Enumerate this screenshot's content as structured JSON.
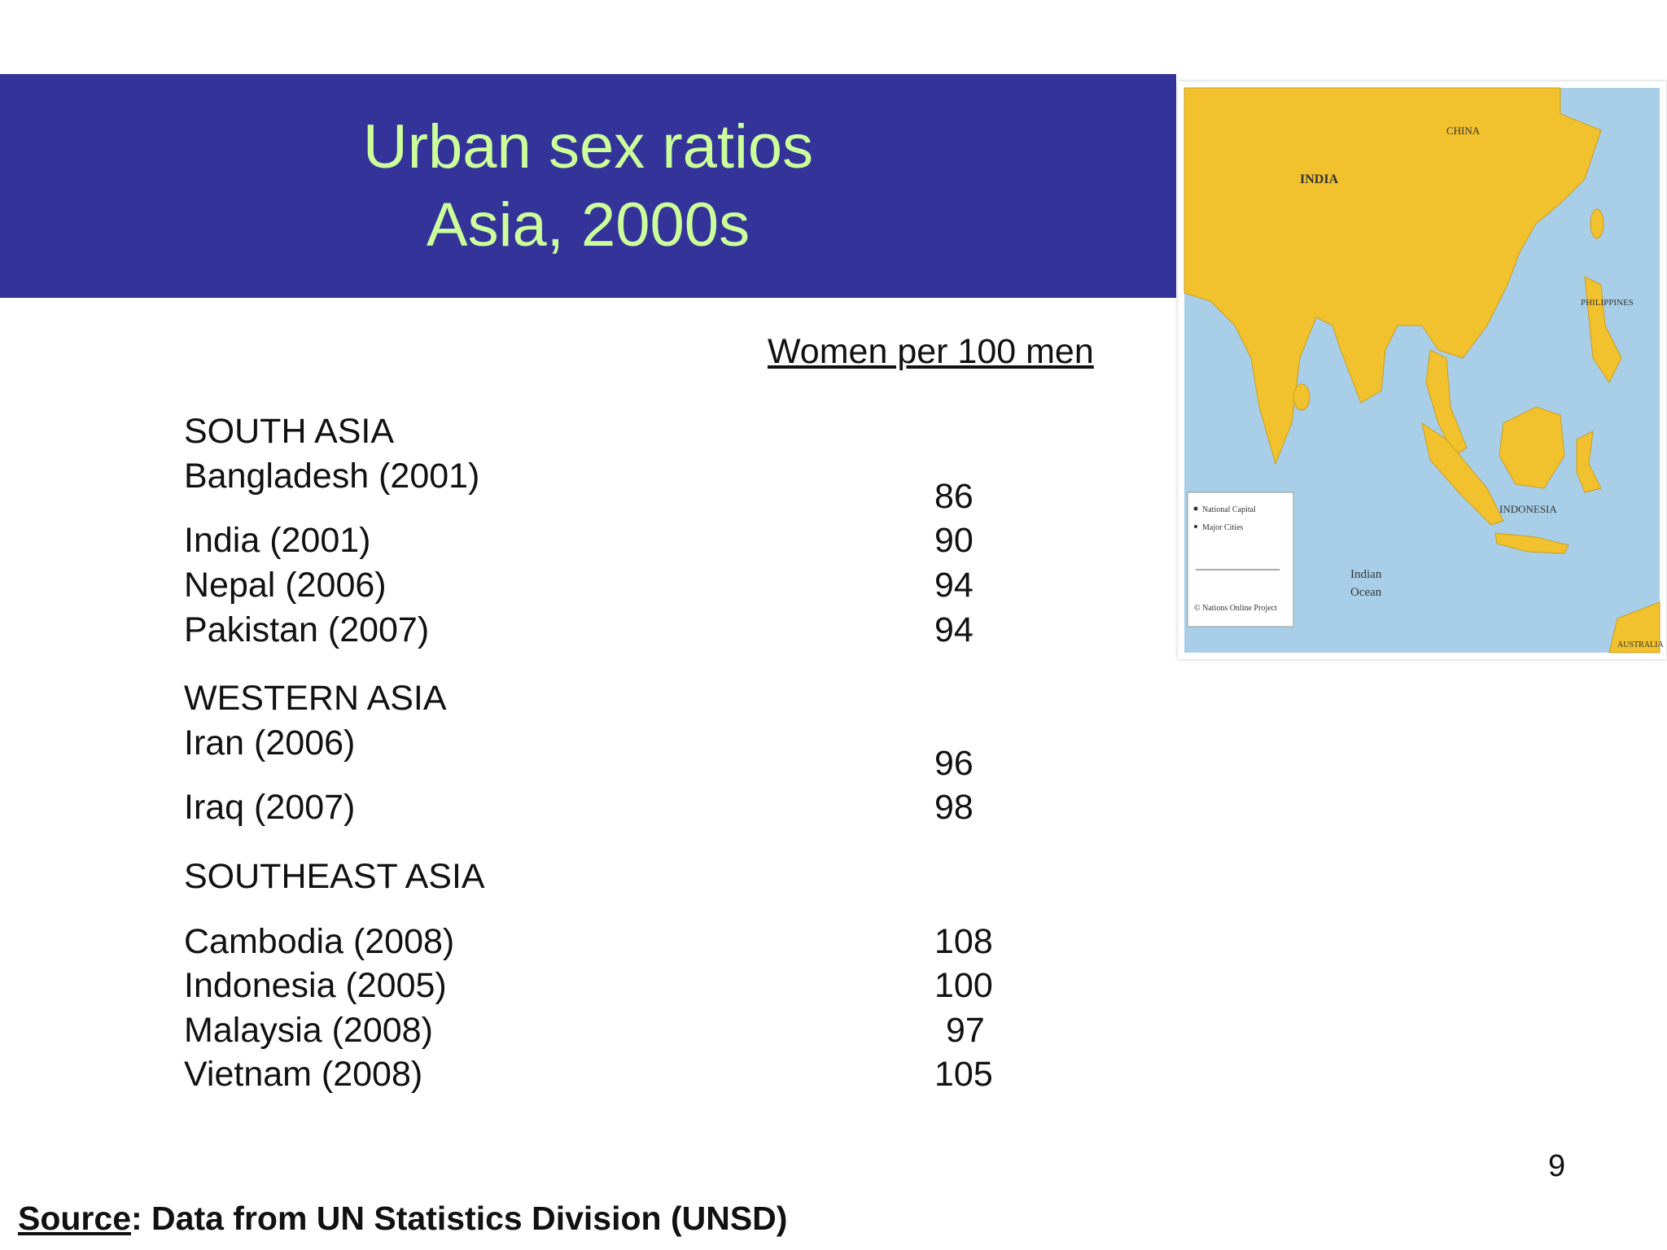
{
  "title": {
    "line1": "Urban sex ratios",
    "line2": "Asia, 2000s"
  },
  "table": {
    "column_header": "Women per 100 men",
    "sections": [
      {
        "heading": "SOUTH ASIA",
        "rows": [
          {
            "label": "Bangladesh (2001)",
            "value": "86"
          },
          {
            "label": "India (2001)",
            "value": "90"
          },
          {
            "label": "Nepal (2006)",
            "value": "94"
          },
          {
            "label": "Pakistan (2007)",
            "value": "94"
          }
        ]
      },
      {
        "heading": "WESTERN ASIA",
        "rows": [
          {
            "label": "Iran (2006)",
            "value": "96"
          },
          {
            "label": "Iraq (2007)",
            "value": "98"
          }
        ]
      },
      {
        "heading": "SOUTHEAST ASIA",
        "rows": [
          {
            "label": "Cambodia (2008)",
            "value": "108"
          },
          {
            "label": "Indonesia (2005)",
            "value": "100"
          },
          {
            "label": "Malaysia (2008)",
            "value": "97"
          },
          {
            "label": "Vietnam (2008)",
            "value": "105"
          }
        ]
      }
    ]
  },
  "map": {
    "labels": {
      "india": "INDIA",
      "china": "CHINA",
      "indonesia": "INDONESIA",
      "philippines": "PHILIPPINES",
      "indian_ocean_1": "Indian",
      "indian_ocean_2": "Ocean",
      "australia": "AUSTRALIA",
      "legend_capital": "National Capital",
      "legend_cities": "Major Cities",
      "credit": "© Nations Online Project"
    },
    "colors": {
      "land": "#f2c12e",
      "sea": "#a9cfe8"
    }
  },
  "page_number": "9",
  "source": {
    "label": "Source",
    "text": ": Data from UN Statistics Division  (UNSD)"
  }
}
